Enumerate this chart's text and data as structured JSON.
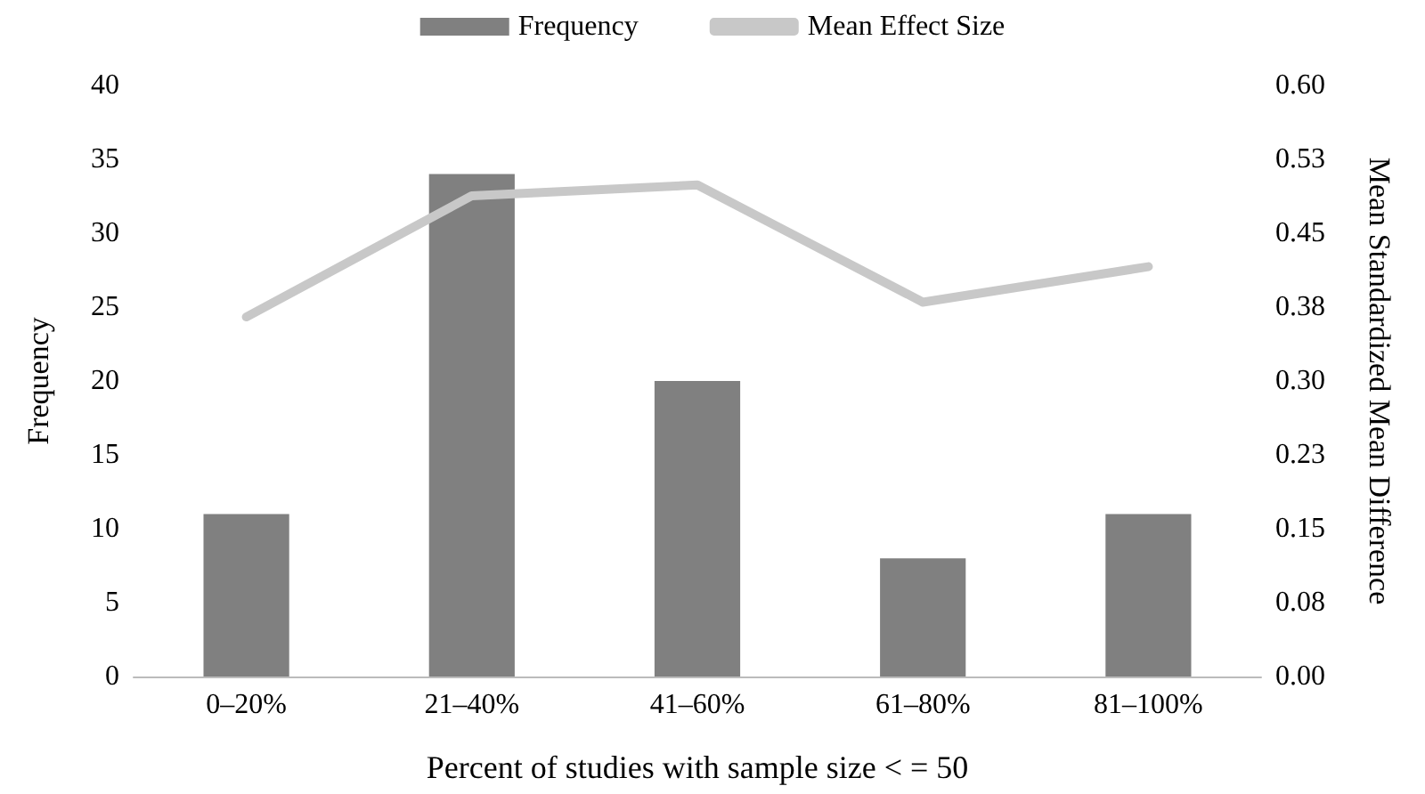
{
  "chart_data": {
    "type": "bar",
    "xlabel": "Percent of studies with sample size < = 50",
    "ylabel": "Frequency",
    "y2label": "Mean Standardized Mean Difference",
    "categories": [
      "0–20%",
      "21–40%",
      "41–60%",
      "61–80%",
      "81–100%"
    ],
    "series": [
      {
        "name": "Frequency",
        "color": "#808080",
        "values": [
          11,
          34,
          20,
          8,
          11
        ]
      },
      {
        "name": "Mean Effect Size",
        "type": "line",
        "axis": "y2",
        "color": "#c8c8c8",
        "values": [
          0.365,
          0.488,
          0.499,
          0.38,
          0.416
        ]
      }
    ],
    "ylim": [
      0,
      40
    ],
    "yticks": [
      0,
      5,
      10,
      15,
      20,
      25,
      30,
      35,
      40
    ],
    "y2lim": [
      0,
      0.6
    ],
    "y2ticks": [
      {
        "value": 0,
        "label": "0.00"
      },
      {
        "value": 0.075,
        "label": "0.08"
      },
      {
        "value": 0.15,
        "label": "0.15"
      },
      {
        "value": 0.225,
        "label": "0.23"
      },
      {
        "value": 0.3,
        "label": "0.30"
      },
      {
        "value": 0.375,
        "label": "0.38"
      },
      {
        "value": 0.45,
        "label": "0.45"
      },
      {
        "value": 0.525,
        "label": "0.53"
      },
      {
        "value": 0.6,
        "label": "0.60"
      }
    ],
    "legend": "top",
    "grid": false,
    "marker": "none",
    "line_style": "solid"
  }
}
